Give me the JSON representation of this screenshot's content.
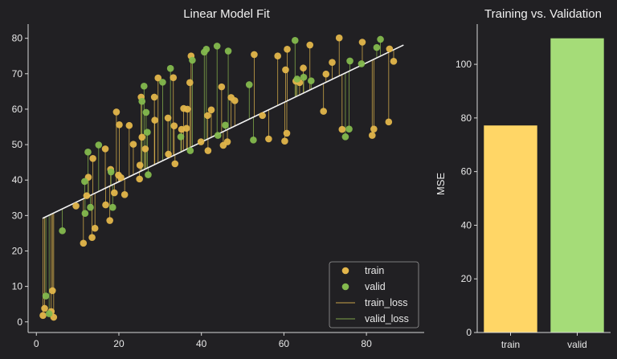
{
  "chart_data": [
    {
      "type": "scatter",
      "title": "Linear Model Fit",
      "xlabel": "",
      "ylabel": "",
      "xlim": [
        -2,
        94
      ],
      "ylim": [
        -3,
        84
      ],
      "xticks": [
        0,
        20,
        40,
        60,
        80
      ],
      "yticks": [
        0,
        10,
        20,
        30,
        40,
        50,
        60,
        70,
        80
      ],
      "grid": false,
      "legend_position": "bottom-right",
      "fit_line": {
        "x": [
          1.5,
          89
        ],
        "y": [
          29.2,
          78.1
        ]
      },
      "series": [
        {
          "name": "train",
          "color": "#e3b64b",
          "points": [
            [
              1.6,
              1.8
            ],
            [
              2.0,
              3.8
            ],
            [
              3.6,
              2.9
            ],
            [
              3.9,
              8.8
            ],
            [
              4.2,
              1.3
            ],
            [
              9.6,
              32.7
            ],
            [
              11.4,
              22.2
            ],
            [
              12.2,
              35.6
            ],
            [
              12.6,
              40.8
            ],
            [
              13.5,
              23.8
            ],
            [
              13.7,
              46.1
            ],
            [
              14.2,
              26.4
            ],
            [
              16.7,
              48.8
            ],
            [
              16.8,
              33.0
            ],
            [
              17.8,
              28.6
            ],
            [
              18.0,
              43.0
            ],
            [
              18.9,
              36.4
            ],
            [
              19.4,
              59.2
            ],
            [
              19.9,
              41.4
            ],
            [
              20.1,
              55.6
            ],
            [
              20.5,
              40.7
            ],
            [
              21.4,
              35.9
            ],
            [
              22.5,
              55.4
            ],
            [
              23.5,
              50.1
            ],
            [
              25.0,
              40.3
            ],
            [
              25.1,
              44.2
            ],
            [
              25.4,
              63.4
            ],
            [
              25.6,
              52.1
            ],
            [
              26.4,
              48.8
            ],
            [
              28.6,
              63.4
            ],
            [
              28.7,
              56.9
            ],
            [
              29.5,
              68.8
            ],
            [
              31.9,
              57.5
            ],
            [
              32.0,
              47.3
            ],
            [
              33.2,
              68.9
            ],
            [
              33.4,
              55.3
            ],
            [
              33.6,
              44.6
            ],
            [
              35.2,
              54.3
            ],
            [
              35.7,
              60.2
            ],
            [
              36.4,
              54.6
            ],
            [
              36.6,
              60.0
            ],
            [
              37.2,
              67.5
            ],
            [
              37.5,
              75.0
            ],
            [
              39.9,
              50.8
            ],
            [
              41.5,
              58.2
            ],
            [
              41.6,
              48.3
            ],
            [
              42.4,
              59.8
            ],
            [
              44.9,
              66.3
            ],
            [
              45.3,
              49.8
            ],
            [
              46.3,
              50.8
            ],
            [
              47.2,
              63.3
            ],
            [
              48.1,
              62.4
            ],
            [
              52.8,
              75.4
            ],
            [
              54.8,
              58.2
            ],
            [
              56.3,
              51.6
            ],
            [
              58.5,
              75.0
            ],
            [
              60.2,
              51.0
            ],
            [
              60.4,
              71.1
            ],
            [
              60.7,
              53.2
            ],
            [
              60.8,
              76.9
            ],
            [
              62.9,
              67.9
            ],
            [
              63.8,
              67.5
            ],
            [
              64.7,
              71.6
            ],
            [
              66.3,
              78.1
            ],
            [
              69.6,
              59.4
            ],
            [
              70.2,
              69.9
            ],
            [
              71.7,
              73.2
            ],
            [
              73.4,
              80.1
            ],
            [
              74.1,
              54.3
            ],
            [
              79.0,
              78.9
            ],
            [
              81.4,
              52.6
            ],
            [
              81.8,
              54.4
            ],
            [
              85.4,
              56.4
            ],
            [
              85.6,
              77.0
            ],
            [
              86.6,
              73.5
            ]
          ]
        },
        {
          "name": "valid",
          "color": "#84b94e",
          "points": [
            [
              2.3,
              7.3
            ],
            [
              3.1,
              2.3
            ],
            [
              6.3,
              25.7
            ],
            [
              11.7,
              39.6
            ],
            [
              11.8,
              30.6
            ],
            [
              12.5,
              47.9
            ],
            [
              13.1,
              32.3
            ],
            [
              15.1,
              49.9
            ],
            [
              18.1,
              42.3
            ],
            [
              18.5,
              32.3
            ],
            [
              25.6,
              62.2
            ],
            [
              26.1,
              66.5
            ],
            [
              26.6,
              59.1
            ],
            [
              26.9,
              53.5
            ],
            [
              27.1,
              41.5
            ],
            [
              30.6,
              67.6
            ],
            [
              32.5,
              71.5
            ],
            [
              35.0,
              52.2
            ],
            [
              37.3,
              48.3
            ],
            [
              37.8,
              73.8
            ],
            [
              40.7,
              76.1
            ],
            [
              41.2,
              76.9
            ],
            [
              43.8,
              77.8
            ],
            [
              44.0,
              52.6
            ],
            [
              45.8,
              55.5
            ],
            [
              46.5,
              76.4
            ],
            [
              51.6,
              66.9
            ],
            [
              52.6,
              51.3
            ],
            [
              62.7,
              79.4
            ],
            [
              63.2,
              68.5
            ],
            [
              64.8,
              69.0
            ],
            [
              66.6,
              68.0
            ],
            [
              74.9,
              52.2
            ],
            [
              75.8,
              54.4
            ],
            [
              76.0,
              73.6
            ],
            [
              78.8,
              72.8
            ],
            [
              82.5,
              77.4
            ],
            [
              83.4,
              79.7
            ]
          ]
        },
        {
          "name": "train_loss",
          "color": "#c9a448"
        },
        {
          "name": "valid_loss",
          "color": "#7ea548"
        }
      ]
    },
    {
      "type": "bar",
      "title": "Training vs. Validation",
      "xlabel": "",
      "ylabel": "MSE",
      "ylim": [
        0,
        115
      ],
      "yticks": [
        0,
        20,
        40,
        60,
        80,
        100
      ],
      "categories": [
        "train",
        "valid"
      ],
      "values": [
        77.2,
        109.7
      ],
      "colors": [
        "#ffd666",
        "#a5dc78"
      ],
      "grid": false
    }
  ]
}
